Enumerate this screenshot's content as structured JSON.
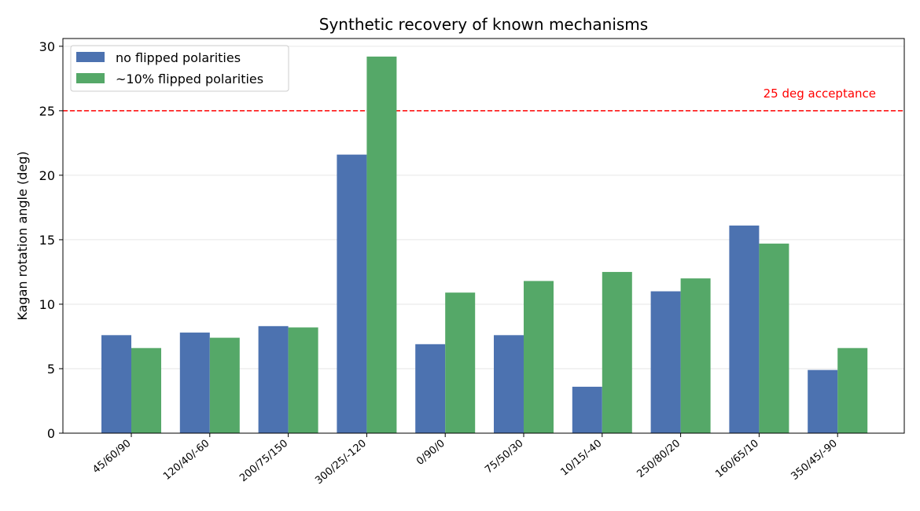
{
  "chart_data": {
    "type": "bar",
    "title": "Synthetic recovery of known mechanisms",
    "xlabel": "",
    "ylabel": "Kagan rotation angle (deg)",
    "ylim": [
      0,
      30.6
    ],
    "yticks": [
      0,
      5,
      10,
      15,
      20,
      25,
      30
    ],
    "categories": [
      "45/60/90",
      "120/40/-60",
      "200/75/150",
      "300/25/-120",
      "0/90/0",
      "75/50/30",
      "10/15/-40",
      "250/80/20",
      "160/65/10",
      "350/45/-90"
    ],
    "series": [
      {
        "name": "no flipped polarities",
        "color": "#4c72b0",
        "values": [
          7.6,
          7.8,
          8.3,
          21.6,
          6.9,
          7.6,
          3.6,
          11.0,
          16.1,
          4.9
        ]
      },
      {
        "name": "~10% flipped polarities",
        "color": "#55a868",
        "values": [
          6.6,
          7.4,
          8.2,
          29.2,
          10.9,
          11.8,
          12.5,
          12.0,
          14.7,
          6.6
        ]
      }
    ],
    "reference_line": {
      "value": 25,
      "label": "25 deg acceptance",
      "color": "#ff0000",
      "style": "dashed"
    },
    "grid": "horizontal",
    "legend_position": "top-left"
  }
}
